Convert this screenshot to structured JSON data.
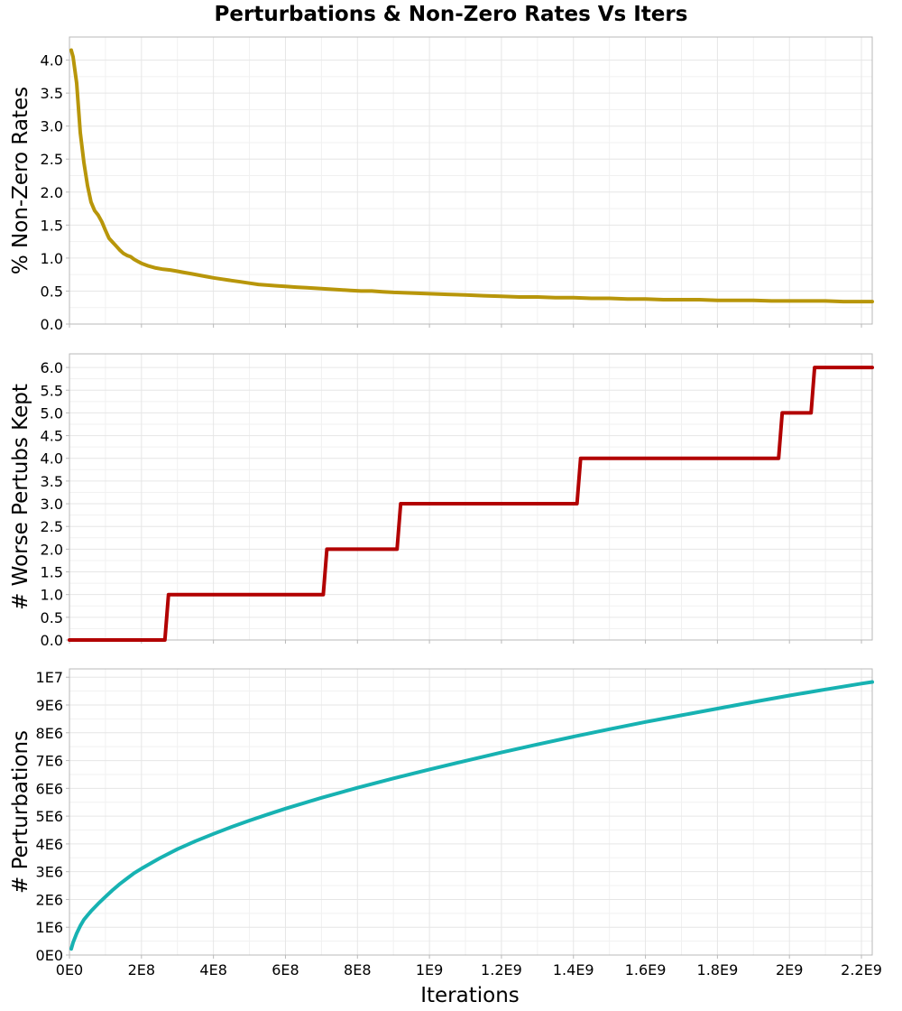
{
  "title": "Perturbations & Non-Zero Rates Vs Iters",
  "xlabel": "Iterations",
  "colors": {
    "nonzero": "#b8960a",
    "worse": "#b20000",
    "perturbations": "#17b2b2"
  },
  "chart_data": [
    {
      "type": "line",
      "ylabel": "% Non-Zero Rates",
      "grid": true,
      "xlim": [
        0,
        2230000000
      ],
      "ylim": [
        0,
        4.35
      ],
      "xticks": [
        0,
        200000000,
        400000000,
        600000000,
        800000000,
        1000000000,
        1200000000,
        1400000000,
        1600000000,
        1800000000,
        2000000000,
        2200000000
      ],
      "xtick_labels": [
        "0E0",
        "2E8",
        "4E8",
        "6E8",
        "8E8",
        "1E9",
        "1.2E9",
        "1.4E9",
        "1.6E9",
        "1.8E9",
        "2E9",
        "2.2E9"
      ],
      "yticks": [
        0,
        0.5,
        1,
        1.5,
        2,
        2.5,
        3,
        3.5,
        4
      ],
      "ytick_labels": [
        "0.0",
        "0.5",
        "1.0",
        "1.5",
        "2.0",
        "2.5",
        "3.0",
        "3.5",
        "4.0"
      ],
      "x": [
        5000000,
        10000000,
        20000000,
        30000000,
        40000000,
        50000000,
        60000000,
        70000000,
        80000000,
        90000000,
        100000000,
        110000000,
        120000000,
        130000000,
        140000000,
        150000000,
        160000000,
        170000000,
        180000000,
        190000000,
        200000000,
        220000000,
        240000000,
        260000000,
        280000000,
        300000000,
        320000000,
        340000000,
        360000000,
        380000000,
        400000000,
        425000000,
        450000000,
        475000000,
        500000000,
        525000000,
        550000000,
        575000000,
        600000000,
        630000000,
        660000000,
        690000000,
        720000000,
        750000000,
        780000000,
        810000000,
        840000000,
        870000000,
        900000000,
        950000000,
        1000000000,
        1050000000,
        1100000000,
        1150000000,
        1200000000,
        1250000000,
        1300000000,
        1350000000,
        1400000000,
        1450000000,
        1500000000,
        1550000000,
        1600000000,
        1650000000,
        1700000000,
        1750000000,
        1800000000,
        1850000000,
        1900000000,
        1950000000,
        2000000000,
        2050000000,
        2100000000,
        2150000000,
        2200000000,
        2230000000
      ],
      "y": [
        4.15,
        4.05,
        3.65,
        2.9,
        2.45,
        2.1,
        1.85,
        1.72,
        1.65,
        1.55,
        1.42,
        1.3,
        1.24,
        1.18,
        1.12,
        1.07,
        1.04,
        1.02,
        0.98,
        0.95,
        0.92,
        0.88,
        0.85,
        0.83,
        0.82,
        0.8,
        0.78,
        0.76,
        0.74,
        0.72,
        0.7,
        0.68,
        0.66,
        0.64,
        0.62,
        0.6,
        0.59,
        0.58,
        0.57,
        0.56,
        0.55,
        0.54,
        0.53,
        0.52,
        0.51,
        0.5,
        0.5,
        0.49,
        0.48,
        0.47,
        0.46,
        0.45,
        0.44,
        0.43,
        0.42,
        0.41,
        0.41,
        0.4,
        0.4,
        0.39,
        0.39,
        0.38,
        0.38,
        0.37,
        0.37,
        0.37,
        0.36,
        0.36,
        0.36,
        0.35,
        0.35,
        0.35,
        0.35,
        0.34,
        0.34,
        0.34
      ]
    },
    {
      "type": "line",
      "ylabel": "# Worse Pertubs Kept",
      "grid": true,
      "xlim": [
        0,
        2230000000
      ],
      "ylim": [
        0,
        6.3
      ],
      "xticks": [
        0,
        200000000,
        400000000,
        600000000,
        800000000,
        1000000000,
        1200000000,
        1400000000,
        1600000000,
        1800000000,
        2000000000,
        2200000000
      ],
      "yticks": [
        0,
        0.5,
        1,
        1.5,
        2,
        2.5,
        3,
        3.5,
        4,
        4.5,
        5,
        5.5,
        6
      ],
      "ytick_labels": [
        "0.0",
        "0.5",
        "1.0",
        "1.5",
        "2.0",
        "2.5",
        "3.0",
        "3.5",
        "4.0",
        "4.5",
        "5.0",
        "5.5",
        "6.0"
      ],
      "x": [
        0,
        265000000,
        275000000,
        705000000,
        715000000,
        910000000,
        920000000,
        1410000000,
        1420000000,
        1970000000,
        1980000000,
        2060000000,
        2070000000,
        2230000000
      ],
      "y": [
        0,
        0,
        1,
        1,
        2,
        2,
        3,
        3,
        4,
        4,
        5,
        5,
        6,
        6
      ]
    },
    {
      "type": "line",
      "ylabel": "# Perturbations",
      "grid": true,
      "xlim": [
        0,
        2230000000
      ],
      "ylim": [
        0,
        10300000
      ],
      "xticks": [
        0,
        200000000,
        400000000,
        600000000,
        800000000,
        1000000000,
        1200000000,
        1400000000,
        1600000000,
        1800000000,
        2000000000,
        2200000000
      ],
      "xtick_labels": [
        "0E0",
        "2E8",
        "4E8",
        "6E8",
        "8E8",
        "1E9",
        "1.2E9",
        "1.4E9",
        "1.6E9",
        "1.8E9",
        "2E9",
        "2.2E9"
      ],
      "yticks": [
        0,
        1000000,
        2000000,
        3000000,
        4000000,
        5000000,
        6000000,
        7000000,
        8000000,
        9000000,
        10000000
      ],
      "ytick_labels": [
        "0E0",
        "1E6",
        "2E6",
        "3E6",
        "4E6",
        "5E6",
        "6E6",
        "7E6",
        "8E6",
        "9E6",
        "1E7"
      ],
      "x": [
        5000000,
        10000000,
        20000000,
        30000000,
        40000000,
        50000000,
        60000000,
        80000000,
        100000000,
        120000000,
        140000000,
        160000000,
        180000000,
        200000000,
        250000000,
        300000000,
        350000000,
        400000000,
        450000000,
        500000000,
        550000000,
        600000000,
        700000000,
        800000000,
        900000000,
        1000000000,
        1100000000,
        1200000000,
        1300000000,
        1400000000,
        1500000000,
        1600000000,
        1700000000,
        1800000000,
        1900000000,
        2000000000,
        2100000000,
        2200000000,
        2230000000
      ],
      "y": [
        220000,
        450000,
        780000,
        1050000,
        1270000,
        1430000,
        1580000,
        1850000,
        2100000,
        2340000,
        2560000,
        2760000,
        2950000,
        3110000,
        3480000,
        3810000,
        4100000,
        4360000,
        4610000,
        4840000,
        5060000,
        5270000,
        5660000,
        6020000,
        6360000,
        6680000,
        6990000,
        7290000,
        7580000,
        7860000,
        8130000,
        8390000,
        8630000,
        8870000,
        9110000,
        9340000,
        9560000,
        9770000,
        9830000
      ]
    }
  ]
}
